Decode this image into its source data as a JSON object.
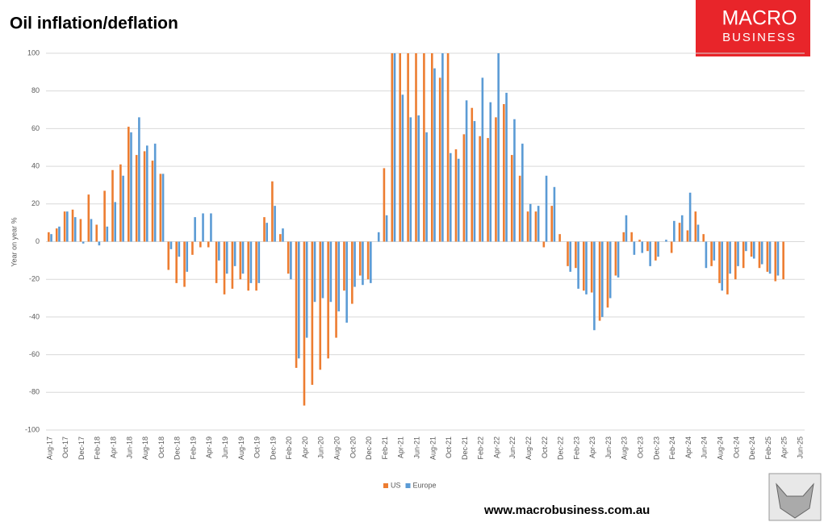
{
  "chart_data": {
    "type": "bar",
    "title": "Oil inflation/deflation",
    "y_label": "Year on year %",
    "logo": [
      "MACRO",
      "BUSINESS"
    ],
    "footer": "www.macrobusiness.com.au",
    "categories": [
      "Aug-17",
      null,
      "Oct-17",
      null,
      "Dec-17",
      null,
      "Feb-18",
      null,
      "Apr-18",
      null,
      "Jun-18",
      null,
      "Aug-18",
      null,
      "Oct-18",
      null,
      "Dec-18",
      null,
      "Feb-19",
      null,
      "Apr-19",
      null,
      "Jun-19",
      null,
      "Aug-19",
      null,
      "Oct-19",
      null,
      "Dec-19",
      null,
      "Feb-20",
      null,
      "Apr-20",
      null,
      "Jun-20",
      null,
      "Aug-20",
      null,
      "Oct-20",
      null,
      "Dec-20",
      null,
      "Feb-21",
      null,
      "Apr-21",
      null,
      "Jun-21",
      null,
      "Aug-21",
      null,
      "Oct-21",
      null,
      "Dec-21",
      null,
      "Feb-22",
      null,
      "Apr-22",
      null,
      "Jun-22",
      null,
      "Aug-22",
      null,
      "Oct-22",
      null,
      "Dec-22",
      null,
      "Feb-23",
      null,
      "Apr-23",
      null,
      "Jun-23",
      null,
      "Aug-23",
      null,
      "Oct-23",
      null,
      "Dec-23",
      null,
      "Feb-24",
      null,
      "Apr-24",
      null,
      "Jun-24",
      null,
      "Aug-24",
      null,
      "Oct-24",
      null,
      "Dec-24",
      null,
      "Feb-25",
      null,
      "Apr-25",
      null,
      "Jun-25"
    ],
    "series": [
      {
        "name": "US",
        "color": "#ed7d31",
        "values": [
          5,
          7,
          16,
          17,
          12,
          25,
          9,
          27,
          38,
          41,
          61,
          46,
          48,
          43,
          36,
          -15,
          -22,
          -24,
          -7,
          -3,
          -3,
          -22,
          -28,
          -25,
          -20,
          -26,
          -26,
          13,
          32,
          4,
          -17,
          -67,
          -87,
          -76,
          -68,
          -62,
          -51,
          -26,
          -33,
          -18,
          -20,
          0,
          39,
          100,
          100,
          100,
          100,
          100,
          100,
          87,
          100,
          49,
          57,
          71,
          56,
          55,
          66,
          73,
          46,
          35,
          16,
          16,
          -3,
          19,
          4,
          -13,
          -14,
          -26,
          -27,
          -42,
          -35,
          -18,
          5,
          5,
          1,
          -5,
          -10,
          0,
          -6,
          10,
          6,
          16,
          4,
          -13,
          -22,
          -28,
          -20,
          -14,
          -8,
          -14,
          -16,
          -21,
          -20,
          null,
          null
        ]
      },
      {
        "name": "Europe",
        "color": "#5b9bd5",
        "values": [
          4,
          8,
          16,
          13,
          -1,
          12,
          -2,
          8,
          21,
          35,
          58,
          66,
          51,
          52,
          36,
          -4,
          -8,
          -16,
          13,
          15,
          15,
          -10,
          -17,
          -13,
          -17,
          -22,
          -22,
          10,
          19,
          7,
          -20,
          -62,
          -51,
          -32,
          -30,
          -32,
          -37,
          -43,
          -24,
          -23,
          -22,
          5,
          14,
          100,
          78,
          66,
          67,
          58,
          92,
          100,
          47,
          44,
          75,
          64,
          87,
          74,
          100,
          79,
          65,
          52,
          20,
          19,
          35,
          29,
          0,
          -16,
          -25,
          -28,
          -47,
          -40,
          -30,
          -19,
          14,
          -7,
          -6,
          -13,
          -8,
          1,
          11,
          14,
          26,
          9,
          -14,
          -10,
          -26,
          -17,
          -13,
          -5,
          -9,
          -12,
          -17,
          -18,
          null,
          null,
          null
        ]
      }
    ],
    "ylim": [
      -100,
      100
    ],
    "yticks": [
      -100,
      -80,
      -60,
      -40,
      -20,
      0,
      20,
      40,
      60,
      80,
      100
    ],
    "grid": true,
    "legend": "bottom"
  }
}
